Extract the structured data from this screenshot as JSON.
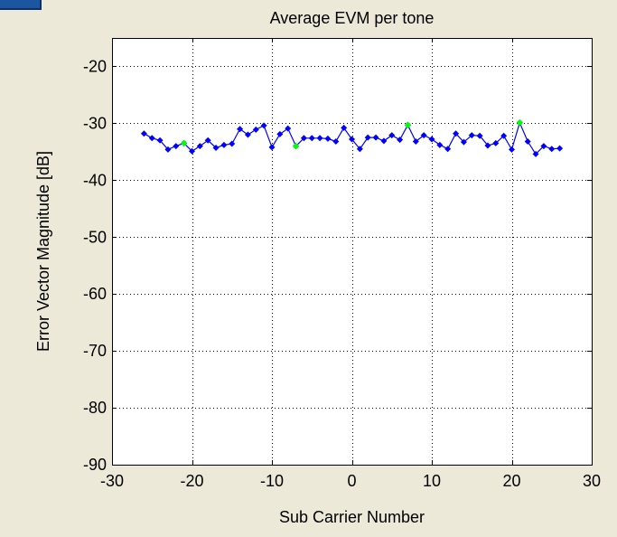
{
  "colors": {
    "background": "#ece9d8",
    "axes_background": "#ffffff",
    "series_main": "#0000ff",
    "series_pilot": "#00ff00",
    "grid": "#000000"
  },
  "chart_data": {
    "type": "line",
    "title": "Average EVM per tone",
    "xlabel": "Sub Carrier Number",
    "ylabel": "Error Vector Magnitude [dB]",
    "xlim": [
      -30,
      30
    ],
    "ylim": [
      -90,
      -15
    ],
    "xticks": [
      -30,
      -20,
      -10,
      0,
      10,
      20,
      30
    ],
    "yticks": [
      -90,
      -80,
      -70,
      -60,
      -50,
      -40,
      -30,
      -20
    ],
    "grid": true,
    "series": [
      {
        "marker": "diamond",
        "color": "#0000ff",
        "x": [
          -26,
          -25,
          -24,
          -23,
          -22,
          -21,
          -20,
          -19,
          -18,
          -17,
          -16,
          -15,
          -14,
          -13,
          -12,
          -11,
          -10,
          -9,
          -8,
          -7,
          -6,
          -5,
          -4,
          -3,
          -2,
          -1,
          0,
          1,
          2,
          3,
          4,
          5,
          6,
          7,
          8,
          9,
          10,
          11,
          12,
          13,
          14,
          15,
          16,
          17,
          18,
          19,
          20,
          21,
          22,
          23,
          24,
          25,
          26
        ],
        "y": [
          -31.8,
          -32.6,
          -33.0,
          -34.6,
          -34.0,
          -33.5,
          -34.9,
          -34.0,
          -33.0,
          -34.3,
          -33.8,
          -33.6,
          -31.0,
          -32.0,
          -31.1,
          -30.4,
          -34.2,
          -31.9,
          -30.9,
          -34.0,
          -32.6,
          -32.6,
          -32.6,
          -32.7,
          -33.2,
          -30.8,
          -32.8,
          -34.5,
          -32.5,
          -32.5,
          -33.1,
          -32.1,
          -32.9,
          -30.3,
          -33.2,
          -32.1,
          -32.8,
          -33.8,
          -34.5,
          -31.8,
          -33.3,
          -32.1,
          -32.2,
          -33.9,
          -33.5,
          -32.2,
          -34.6,
          -29.9,
          -33.2,
          -35.4,
          -34.0,
          -34.5,
          -34.4
        ]
      },
      {
        "marker": "dot",
        "color": "#00ff00",
        "x": [
          -21,
          -7,
          7,
          21
        ],
        "y": [
          -33.5,
          -34.0,
          -30.3,
          -29.9
        ]
      }
    ]
  }
}
